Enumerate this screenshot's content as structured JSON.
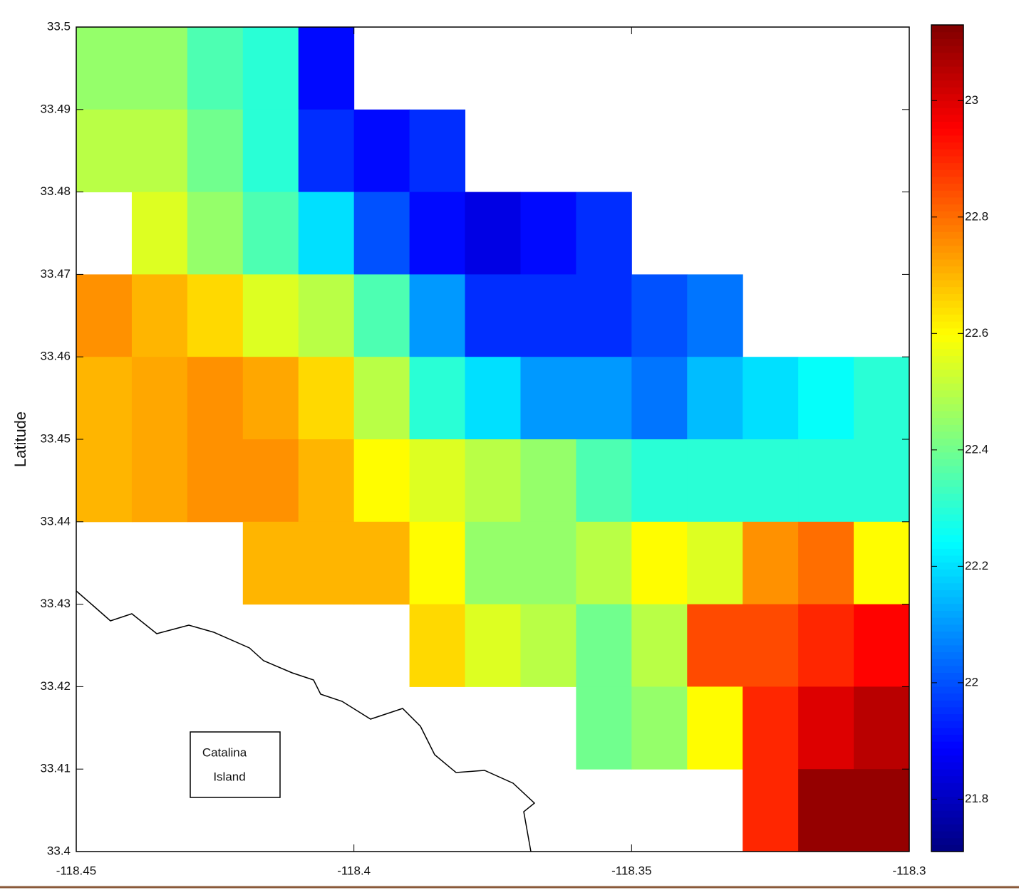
{
  "chart_data": {
    "type": "heatmap",
    "colormap": "jet",
    "ylabel": "Latitude",
    "x": [
      -118.445,
      -118.435,
      -118.425,
      -118.415,
      -118.405,
      -118.395,
      -118.385,
      -118.375,
      -118.365,
      -118.355,
      -118.345,
      -118.335,
      -118.325,
      -118.315,
      -118.305
    ],
    "y": [
      33.495,
      33.485,
      33.475,
      33.465,
      33.455,
      33.445,
      33.435,
      33.425,
      33.415,
      33.405
    ],
    "z": [
      [
        22.45,
        22.45,
        22.35,
        22.3,
        21.9,
        null,
        null,
        null,
        null,
        null,
        null,
        null,
        null,
        null,
        null
      ],
      [
        22.5,
        22.5,
        22.4,
        22.3,
        21.95,
        21.9,
        21.95,
        null,
        null,
        null,
        null,
        null,
        null,
        null,
        null
      ],
      [
        null,
        22.55,
        22.45,
        22.35,
        22.2,
        22.0,
        21.9,
        21.85,
        21.9,
        21.95,
        null,
        null,
        null,
        null,
        null
      ],
      [
        22.75,
        22.7,
        22.65,
        22.55,
        22.5,
        22.35,
        22.1,
        21.95,
        21.95,
        21.95,
        22.0,
        22.05,
        null,
        null,
        null
      ],
      [
        22.7,
        22.72,
        22.75,
        22.72,
        22.65,
        22.5,
        22.3,
        22.2,
        22.1,
        22.1,
        22.05,
        22.15,
        22.2,
        22.25,
        22.3
      ],
      [
        22.7,
        22.72,
        22.75,
        22.75,
        22.7,
        22.6,
        22.55,
        22.5,
        22.45,
        22.35,
        22.3,
        22.3,
        22.3,
        22.3,
        22.3
      ],
      [
        null,
        null,
        null,
        22.7,
        22.7,
        22.7,
        22.6,
        22.45,
        22.45,
        22.5,
        22.6,
        22.55,
        22.75,
        22.8,
        22.6
      ],
      [
        null,
        null,
        null,
        null,
        null,
        null,
        22.65,
        22.55,
        22.5,
        22.4,
        22.5,
        22.85,
        22.85,
        22.9,
        22.95
      ],
      [
        null,
        null,
        null,
        null,
        null,
        null,
        null,
        null,
        null,
        22.4,
        22.45,
        22.6,
        22.9,
        23.0,
        23.05
      ],
      [
        null,
        null,
        null,
        null,
        null,
        null,
        null,
        null,
        null,
        null,
        null,
        null,
        22.9,
        23.1,
        23.1
      ]
    ],
    "xlim": [
      -118.45,
      -118.3
    ],
    "ylim": [
      33.4,
      33.5
    ],
    "xticks": [
      -118.45,
      -118.4,
      -118.35,
      -118.3
    ],
    "yticks": [
      33.4,
      33.41,
      33.42,
      33.43,
      33.44,
      33.45,
      33.46,
      33.47,
      33.48,
      33.49,
      33.5
    ],
    "clim": [
      21.71,
      23.13
    ],
    "cticks": [
      21.8,
      22,
      22.2,
      22.4,
      22.6,
      22.8,
      23
    ],
    "annotation": [
      "Catalina",
      "Island"
    ]
  }
}
